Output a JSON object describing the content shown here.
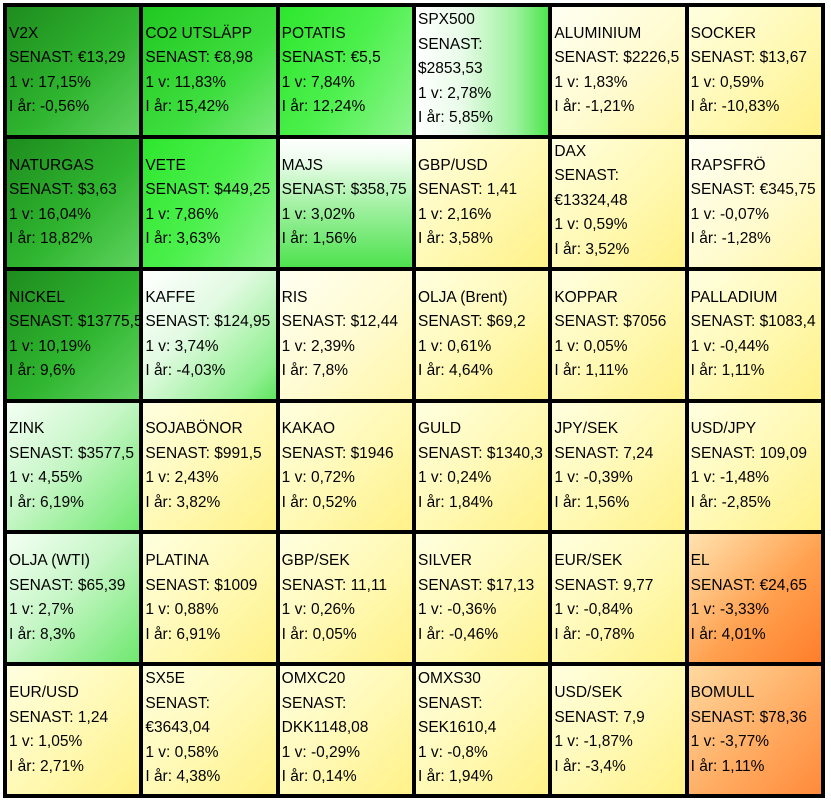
{
  "tiles": [
    {
      "name": "V2X",
      "senast": "SENAST: €13,29",
      "v1": "1 v: 17,15%",
      "ytd": "I år: -0,56%"
    },
    {
      "name": "CO2 UTSLÄPP",
      "senast": "SENAST: €8,98",
      "v1": "1 v: 11,83%",
      "ytd": "I år: 15,42%"
    },
    {
      "name": "POTATIS",
      "senast": "SENAST: €5,5",
      "v1": "1 v: 7,84%",
      "ytd": "I år: 12,24%"
    },
    {
      "name": "SPX500",
      "senast1": "SENAST:",
      "senast2": "$2853,53",
      "v1": "1 v: 2,78%",
      "ytd": "I år: 5,85%"
    },
    {
      "name": "ALUMINIUM",
      "senast": "SENAST: $2226,5",
      "v1": "1 v: 1,83%",
      "ytd": "I år: -1,21%"
    },
    {
      "name": "SOCKER",
      "senast": "SENAST: $13,67",
      "v1": "1 v: 0,59%",
      "ytd": "I år: -10,83%"
    },
    {
      "name": "NATURGAS",
      "senast": "SENAST: $3,63",
      "v1": "1 v: 16,04%",
      "ytd": "I år: 18,82%"
    },
    {
      "name": "VETE",
      "senast": "SENAST: $449,25",
      "v1": "1 v: 7,86%",
      "ytd": "I år: 3,63%"
    },
    {
      "name": "MAJS",
      "senast": "SENAST: $358,75",
      "v1": "1 v: 3,02%",
      "ytd": "I år: 1,56%"
    },
    {
      "name": "GBP/USD",
      "senast": "SENAST: 1,41",
      "v1": "1 v: 2,16%",
      "ytd": "I år: 3,58%"
    },
    {
      "name": "DAX",
      "senast1": "SENAST:",
      "senast2": "€13324,48",
      "v1": "1 v: 0,59%",
      "ytd": "I år: 3,52%"
    },
    {
      "name": "RAPSFRÖ",
      "senast": "SENAST: €345,75",
      "v1": "1 v: -0,07%",
      "ytd": "I år: -1,28%"
    },
    {
      "name": "NICKEL",
      "senast": "SENAST: $13775,5",
      "v1": "1 v: 10,19%",
      "ytd": "I år: 9,6%"
    },
    {
      "name": "KAFFE",
      "senast": "SENAST: $124,95",
      "v1": "1 v: 3,74%",
      "ytd": "I år: -4,03%"
    },
    {
      "name": "RIS",
      "senast": "SENAST: $12,44",
      "v1": "1 v: 2,39%",
      "ytd": "I år: 7,8%"
    },
    {
      "name": "OLJA (Brent)",
      "senast": "SENAST: $69,2",
      "v1": "1 v: 0,61%",
      "ytd": "I år: 4,64%"
    },
    {
      "name": "KOPPAR",
      "senast": "SENAST: $7056",
      "v1": "1 v: 0,05%",
      "ytd": "I år: 1,11%"
    },
    {
      "name": "PALLADIUM",
      "senast": "SENAST: $1083,4",
      "v1": "1 v: -0,44%",
      "ytd": "I år: 1,11%"
    },
    {
      "name": "ZINK",
      "senast": "SENAST: $3577,5",
      "v1": "1 v: 4,55%",
      "ytd": "I år: 6,19%"
    },
    {
      "name": "SOJABÖNOR",
      "senast": "SENAST: $991,5",
      "v1": "1 v: 2,43%",
      "ytd": "I år: 3,82%"
    },
    {
      "name": "KAKAO",
      "senast": "SENAST: $1946",
      "v1": "1 v: 0,72%",
      "ytd": "I år: 0,52%"
    },
    {
      "name": "GULD",
      "senast": "SENAST: $1340,3",
      "v1": "1 v: 0,24%",
      "ytd": "I år: 1,84%"
    },
    {
      "name": "JPY/SEK",
      "senast": "SENAST: 7,24",
      "v1": "1 v: -0,39%",
      "ytd": "I år: 1,56%"
    },
    {
      "name": "USD/JPY",
      "senast": "SENAST: 109,09",
      "v1": "1 v: -1,48%",
      "ytd": "I år: -2,85%"
    },
    {
      "name": "OLJA (WTI)",
      "senast": "SENAST: $65,39",
      "v1": "1 v: 2,7%",
      "ytd": "I år: 8,3%"
    },
    {
      "name": "PLATINA",
      "senast": "SENAST: $1009",
      "v1": "1 v: 0,88%",
      "ytd": "I år: 6,91%"
    },
    {
      "name": "GBP/SEK",
      "senast": "SENAST: 11,11",
      "v1": "1 v: 0,26%",
      "ytd": "I år: 0,05%"
    },
    {
      "name": "SILVER",
      "senast": "SENAST: $17,13",
      "v1": "1 v: -0,36%",
      "ytd": "I år: -0,46%"
    },
    {
      "name": "EUR/SEK",
      "senast": "SENAST: 9,77",
      "v1": "1 v: -0,84%",
      "ytd": "I år: -0,78%"
    },
    {
      "name": "EL",
      "senast": "SENAST: €24,65",
      "v1": "1 v: -3,33%",
      "ytd": "I år: 4,01%"
    },
    {
      "name": "EUR/USD",
      "senast": "SENAST: 1,24",
      "v1": "1 v: 1,05%",
      "ytd": "I år: 2,71%"
    },
    {
      "name": "SX5E",
      "senast1": "SENAST:",
      "senast2": "€3643,04",
      "v1": "1 v: 0,58%",
      "ytd": "I år: 4,38%"
    },
    {
      "name": "OMXC20",
      "senast1": "SENAST:",
      "senast2": "DKK1148,08",
      "v1": "1 v: -0,29%",
      "ytd": "I år: 0,14%"
    },
    {
      "name": "OMXS30",
      "senast1": "SENAST:",
      "senast2": "SEK1610,4",
      "v1": "1 v: -0,8%",
      "ytd": "I år: 1,94%"
    },
    {
      "name": "USD/SEK",
      "senast": "SENAST: 7,9",
      "v1": "1 v: -1,87%",
      "ytd": "I år: -3,4%"
    },
    {
      "name": "BOMULL",
      "senast": "SENAST: $78,36",
      "v1": "1 v: -3,77%",
      "ytd": "I år: 1,11%"
    }
  ]
}
